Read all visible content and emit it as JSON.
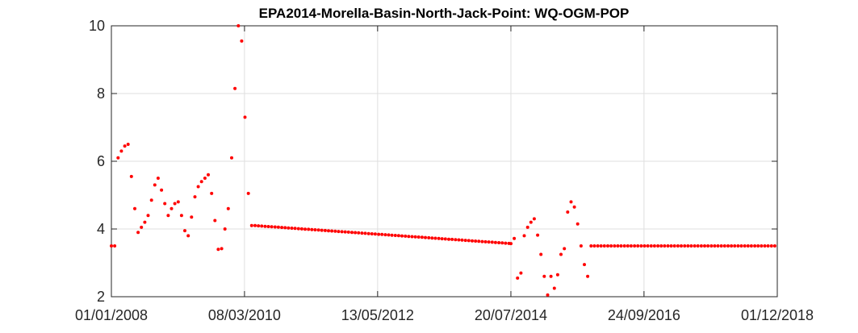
{
  "chart_data": {
    "type": "scatter",
    "title": "EPA2014-Morella-Basin-North-Jack-Point: WQ-OGM-POP",
    "xlabel": "",
    "ylabel": "",
    "xlim": [
      "2008-01-01",
      "2018-12-01"
    ],
    "ylim": [
      2,
      10
    ],
    "grid": true,
    "marker_color": "#ff0000",
    "x_ticks": [
      "01/01/2008",
      "08/03/2010",
      "13/05/2012",
      "20/07/2014",
      "24/09/2016",
      "01/12/2018"
    ],
    "y_ticks": [
      "2",
      "4",
      "6",
      "8",
      "10"
    ],
    "series": [
      {
        "points": [
          [
            "2008-01-01",
            3.5
          ],
          [
            "2008-01-21",
            3.5
          ],
          [
            "2008-02-10",
            6.1
          ],
          [
            "2008-03-01",
            6.3
          ],
          [
            "2008-03-21",
            6.45
          ],
          [
            "2008-04-10",
            6.5
          ],
          [
            "2008-04-30",
            5.55
          ],
          [
            "2008-05-20",
            4.6
          ],
          [
            "2008-06-09",
            3.9
          ],
          [
            "2008-06-29",
            4.05
          ],
          [
            "2008-07-19",
            4.2
          ],
          [
            "2008-08-08",
            4.4
          ],
          [
            "2008-08-28",
            4.85
          ],
          [
            "2008-09-17",
            5.3
          ],
          [
            "2008-10-07",
            5.5
          ],
          [
            "2008-10-27",
            5.15
          ],
          [
            "2008-11-16",
            4.75
          ],
          [
            "2008-12-06",
            4.4
          ],
          [
            "2008-12-26",
            4.6
          ],
          [
            "2009-01-15",
            4.75
          ],
          [
            "2009-02-04",
            4.8
          ],
          [
            "2009-02-24",
            4.4
          ],
          [
            "2009-03-16",
            3.95
          ],
          [
            "2009-04-05",
            3.8
          ],
          [
            "2009-04-25",
            4.35
          ],
          [
            "2009-05-15",
            4.95
          ],
          [
            "2009-06-04",
            5.25
          ],
          [
            "2009-06-24",
            5.4
          ],
          [
            "2009-07-14",
            5.5
          ],
          [
            "2009-08-03",
            5.6
          ],
          [
            "2009-08-23",
            5.05
          ],
          [
            "2009-09-12",
            4.25
          ],
          [
            "2009-10-02",
            3.4
          ],
          [
            "2009-10-22",
            3.42
          ],
          [
            "2009-11-11",
            4.0
          ],
          [
            "2009-12-01",
            4.6
          ],
          [
            "2009-12-21",
            6.1
          ],
          [
            "2010-01-10",
            8.15
          ],
          [
            "2010-01-30",
            10.0
          ],
          [
            "2010-02-19",
            9.55
          ],
          [
            "2010-03-11",
            7.3
          ],
          [
            "2010-03-31",
            5.05
          ],
          [
            "2010-04-20",
            4.1
          ]
        ]
      },
      {
        "points": [
          [
            "2014-07-20",
            3.57
          ],
          [
            "2014-08-09",
            3.72
          ],
          [
            "2014-08-29",
            2.55
          ],
          [
            "2014-09-18",
            2.7
          ],
          [
            "2014-10-08",
            3.8
          ],
          [
            "2014-10-28",
            4.05
          ],
          [
            "2014-11-17",
            4.2
          ],
          [
            "2014-12-07",
            4.3
          ],
          [
            "2014-12-27",
            3.82
          ],
          [
            "2015-01-16",
            3.25
          ],
          [
            "2015-02-05",
            2.6
          ],
          [
            "2015-02-25",
            2.05
          ],
          [
            "2015-03-17",
            2.6
          ],
          [
            "2015-04-06",
            2.25
          ],
          [
            "2015-04-26",
            2.65
          ],
          [
            "2015-05-16",
            3.25
          ],
          [
            "2015-06-05",
            3.42
          ],
          [
            "2015-06-25",
            4.5
          ],
          [
            "2015-07-15",
            4.8
          ],
          [
            "2015-08-04",
            4.65
          ],
          [
            "2015-08-24",
            4.15
          ],
          [
            "2015-09-13",
            3.5
          ],
          [
            "2015-10-03",
            2.95
          ],
          [
            "2015-10-23",
            2.6
          ]
        ]
      }
    ],
    "linear_runs": [
      {
        "start": "2010-05-10",
        "end": "2014-07-20",
        "step_days": 20,
        "y_start": 4.1,
        "y_end": 3.57
      },
      {
        "start": "2015-11-12",
        "end": "2018-12-01",
        "step_days": 20,
        "y_start": 3.5,
        "y_end": 3.5
      }
    ]
  }
}
